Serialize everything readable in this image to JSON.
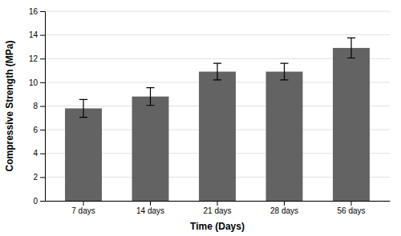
{
  "chart_data": {
    "type": "bar",
    "categories": [
      "7 days",
      "14 days",
      "21 days",
      "28 days",
      "56 days"
    ],
    "values": [
      7.8,
      8.8,
      10.9,
      10.9,
      12.9
    ],
    "errors": [
      0.75,
      0.75,
      0.7,
      0.7,
      0.85
    ],
    "color": "#636363",
    "xlabel": "Time (Days)",
    "ylabel": "Compressive Strength (MPa)",
    "ylim": [
      0,
      16
    ],
    "yticks": [
      0,
      2,
      4,
      6,
      8,
      10,
      12,
      14,
      16
    ],
    "grid": true
  }
}
